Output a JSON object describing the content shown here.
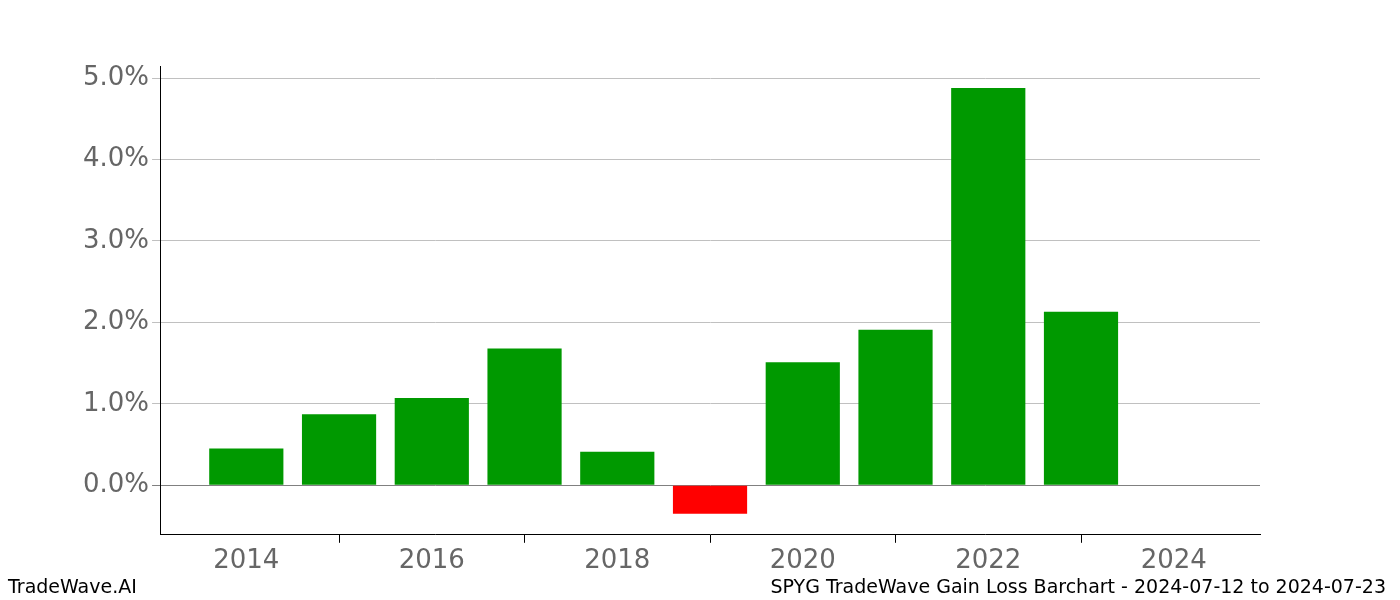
{
  "chart_data": {
    "type": "bar",
    "title": "SPYG TradeWave Gain Loss Barchart - 2024-07-12 to 2024-07-23",
    "annotations": [
      "TradeWave.AI"
    ],
    "x": [
      2014,
      2015,
      2016,
      2017,
      2018,
      2019,
      2020,
      2021,
      2022,
      2023
    ],
    "values": [
      0.45,
      0.87,
      1.07,
      1.68,
      0.41,
      -0.35,
      1.51,
      1.91,
      4.88,
      2.13
    ],
    "colors": [
      "#009900",
      "#009900",
      "#009900",
      "#009900",
      "#009900",
      "#ff0000",
      "#009900",
      "#009900",
      "#009900",
      "#009900"
    ],
    "xlim": [
      2013.07,
      2024.93
    ],
    "xticks": [
      2014,
      2016,
      2018,
      2020,
      2022,
      2024
    ],
    "ylim": [
      -0.61,
      5.15
    ],
    "yticks": [
      {
        "value": 0,
        "label": "0.0%"
      },
      {
        "value": 1,
        "label": "1.0%"
      },
      {
        "value": 2,
        "label": "2.0%"
      },
      {
        "value": 3,
        "label": "3.0%"
      },
      {
        "value": 4,
        "label": "4.0%"
      },
      {
        "value": 5,
        "label": "5.0%"
      }
    ],
    "grid": "y"
  }
}
